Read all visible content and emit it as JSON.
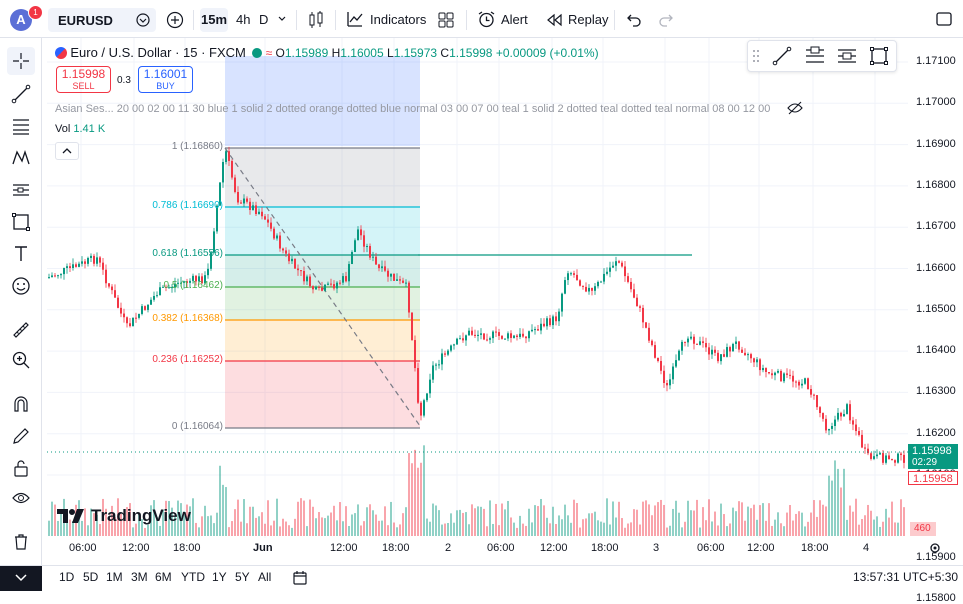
{
  "topbar": {
    "avatar_letter": "A",
    "notification_count": "1",
    "symbol": "EURUSD",
    "intervals": [
      "15m",
      "4h",
      "D"
    ],
    "indicators_label": "Indicators",
    "alert_label": "Alert",
    "replay_label": "Replay"
  },
  "legend": {
    "title": "Euro / U.S. Dollar · 15 · FXCM",
    "open_label": "O",
    "open": "1.15989",
    "high_label": "H",
    "high": "1.16005",
    "low_label": "L",
    "low": "1.15973",
    "close_label": "C",
    "close": "1.15998",
    "change": "+0.00009 (+0.01%)",
    "sell_price": "1.15998",
    "sell_label": "SELL",
    "spread": "0.3",
    "buy_price": "1.16001",
    "buy_label": "BUY",
    "session_text": "Asian Ses...  20 00 02 00 11 30 blue 1 solid 2 dotted orange dotted blue normal 03 00 07 00 teal 1 solid 2 dotted teal dotted teal normal 08 00 12 00",
    "vol_label": "Vol",
    "vol_value": "1.41 K"
  },
  "fib": {
    "levels": [
      {
        "label": "1 (1.16860)",
        "color": "#787b86"
      },
      {
        "label": "0.786 (1.16690)",
        "color": "#00bcd4"
      },
      {
        "label": "0.618 (1.16556)",
        "color": "#089981"
      },
      {
        "label": "0.5 (1.16462)",
        "color": "#4caf50"
      },
      {
        "label": "0.382 (1.16368)",
        "color": "#ff9800"
      },
      {
        "label": "0.236 (1.16252)",
        "color": "#f23645"
      },
      {
        "label": "0 (1.16064)",
        "color": "#787b86"
      }
    ]
  },
  "price_scale": [
    "1.17100",
    "1.17000",
    "1.16900",
    "1.16800",
    "1.16700",
    "1.16600",
    "1.16500",
    "1.16400",
    "1.16300",
    "1.16200",
    "1.16100",
    "1.15900",
    "1.15800"
  ],
  "price_labels": {
    "current": "1.15998",
    "countdown": "02:29",
    "bid": "1.15958",
    "volume": "460"
  },
  "time_scale": [
    "06:00",
    "12:00",
    "18:00",
    "Jun",
    "12:00",
    "18:00",
    "2",
    "06:00",
    "12:00",
    "18:00",
    "3",
    "06:00",
    "12:00",
    "18:00",
    "4"
  ],
  "bottom": {
    "ranges": [
      "1D",
      "5D",
      "1M",
      "3M",
      "6M",
      "YTD",
      "1Y",
      "5Y",
      "All"
    ],
    "clock": "13:57:31 UTC+5:30"
  },
  "watermark": "TradingView",
  "colors": {
    "up": "#089981",
    "down": "#f23645",
    "accent": "#2962ff"
  }
}
